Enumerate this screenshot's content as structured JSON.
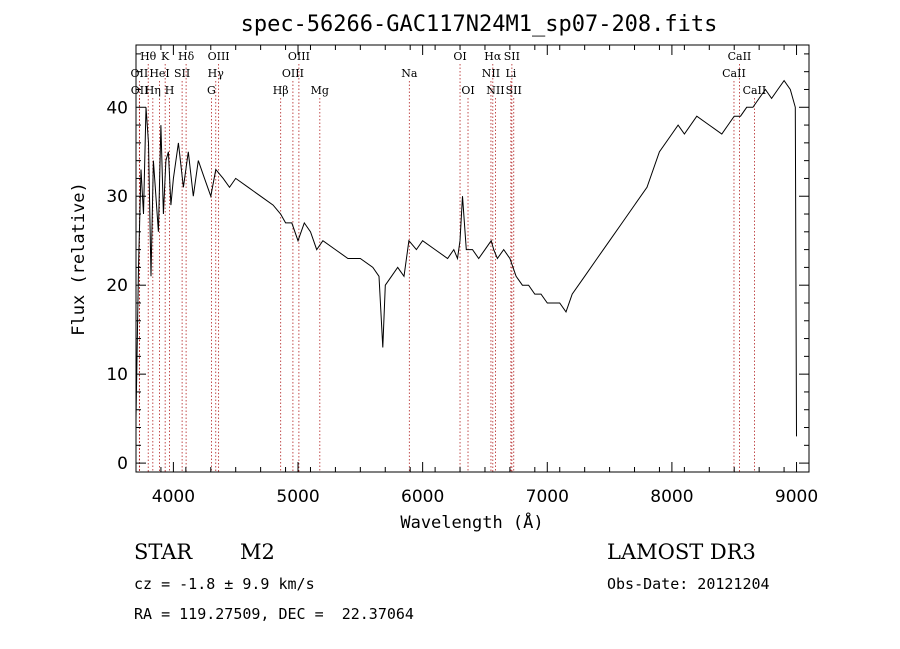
{
  "chart_data": {
    "type": "line",
    "title": "spec-56266-GAC117N24M1_sp07-208.fits",
    "xlabel": "Wavelength (Å)",
    "ylabel": "Flux (relative)",
    "xlim": [
      3700,
      9100
    ],
    "ylim": [
      -1,
      47
    ],
    "x_ticks": [
      4000,
      5000,
      6000,
      7000,
      8000,
      9000
    ],
    "y_ticks": [
      0,
      10,
      20,
      30,
      40
    ],
    "grid": false,
    "series": [
      {
        "x": [
          3700,
          3720,
          3740,
          3760,
          3780,
          3800,
          3820,
          3840,
          3860,
          3880,
          3900,
          3920,
          3940,
          3960,
          3980,
          4000,
          4040,
          4080,
          4120,
          4160,
          4200,
          4250,
          4300,
          4340,
          4400,
          4450,
          4500,
          4600,
          4700,
          4800,
          4860,
          4900,
          4950,
          5000,
          5050,
          5100,
          5150,
          5200,
          5300,
          5400,
          5500,
          5600,
          5650,
          5680,
          5700,
          5750,
          5800,
          5850,
          5890,
          5950,
          6000,
          6100,
          6200,
          6250,
          6280,
          6300,
          6320,
          6350,
          6400,
          6450,
          6500,
          6550,
          6570,
          6600,
          6650,
          6700,
          6750,
          6800,
          6850,
          6900,
          6950,
          7000,
          7050,
          7100,
          7150,
          7200,
          7300,
          7400,
          7500,
          7600,
          7700,
          7800,
          7900,
          8000,
          8050,
          8100,
          8200,
          8300,
          8400,
          8450,
          8500,
          8550,
          8600,
          8650,
          8700,
          8750,
          8800,
          8850,
          8900,
          8950,
          8990,
          9000
        ],
        "y": [
          5,
          22,
          33,
          28,
          40,
          36,
          21,
          34,
          30,
          26,
          38,
          28,
          34,
          35,
          29,
          32,
          36,
          31,
          35,
          30,
          34,
          32,
          30,
          33,
          32,
          31,
          32,
          31,
          30,
          29,
          28,
          27,
          27,
          25,
          27,
          26,
          24,
          25,
          24,
          23,
          23,
          22,
          21,
          13,
          20,
          21,
          22,
          21,
          25,
          24,
          25,
          24,
          23,
          24,
          23,
          25,
          30,
          24,
          24,
          23,
          24,
          25,
          24,
          23,
          24,
          23,
          21,
          20,
          20,
          19,
          19,
          18,
          18,
          18,
          17,
          19,
          21,
          23,
          25,
          27,
          29,
          31,
          35,
          37,
          38,
          37,
          39,
          38,
          37,
          38,
          39,
          39,
          40,
          40,
          41,
          42,
          41,
          42,
          43,
          42,
          40,
          3
        ]
      }
    ],
    "spectral_lines": [
      {
        "label": "Hθ",
        "x": 3798,
        "row": 1
      },
      {
        "label": "OII",
        "x": 3727,
        "row": 2
      },
      {
        "label": "OII",
        "x": 3729,
        "row": 3
      },
      {
        "label": "Hη",
        "x": 3835,
        "row": 3
      },
      {
        "label": "HeI",
        "x": 3889,
        "row": 2
      },
      {
        "label": "K",
        "x": 3934,
        "row": 1
      },
      {
        "label": "H",
        "x": 3969,
        "row": 3
      },
      {
        "label": "SII",
        "x": 4070,
        "row": 2
      },
      {
        "label": "Hδ",
        "x": 4102,
        "row": 1
      },
      {
        "label": "OIII",
        "x": 4363,
        "row": 1
      },
      {
        "label": "Hγ",
        "x": 4340,
        "row": 2
      },
      {
        "label": "G",
        "x": 4305,
        "row": 3
      },
      {
        "label": "Hβ",
        "x": 4861,
        "row": 3
      },
      {
        "label": "OIII",
        "x": 5007,
        "row": 1
      },
      {
        "label": "OIII",
        "x": 4959,
        "row": 2
      },
      {
        "label": "Mg",
        "x": 5175,
        "row": 3
      },
      {
        "label": "Na",
        "x": 5893,
        "row": 2
      },
      {
        "label": "OI",
        "x": 6300,
        "row": 1
      },
      {
        "label": "OI",
        "x": 6364,
        "row": 3
      },
      {
        "label": "Hα",
        "x": 6563,
        "row": 1
      },
      {
        "label": "NII",
        "x": 6548,
        "row": 2
      },
      {
        "label": "NII",
        "x": 6584,
        "row": 3
      },
      {
        "label": "SII",
        "x": 6716,
        "row": 1
      },
      {
        "label": "Li",
        "x": 6708,
        "row": 2
      },
      {
        "label": "SII",
        "x": 6731,
        "row": 3
      },
      {
        "label": "CaII",
        "x": 8542,
        "row": 1
      },
      {
        "label": "CaII",
        "x": 8498,
        "row": 2
      },
      {
        "label": "CaII",
        "x": 8662,
        "row": 3
      }
    ],
    "line_color": "#000000",
    "marker_color": "#b22222"
  },
  "info": {
    "object_class": "STAR",
    "subclass": "M2",
    "survey": "LAMOST DR3",
    "cz": "cz = -1.8 ± 9.9 km/s",
    "obs_date": "Obs-Date: 20121204",
    "coords": "RA = 119.27509, DEC =  22.37064"
  }
}
